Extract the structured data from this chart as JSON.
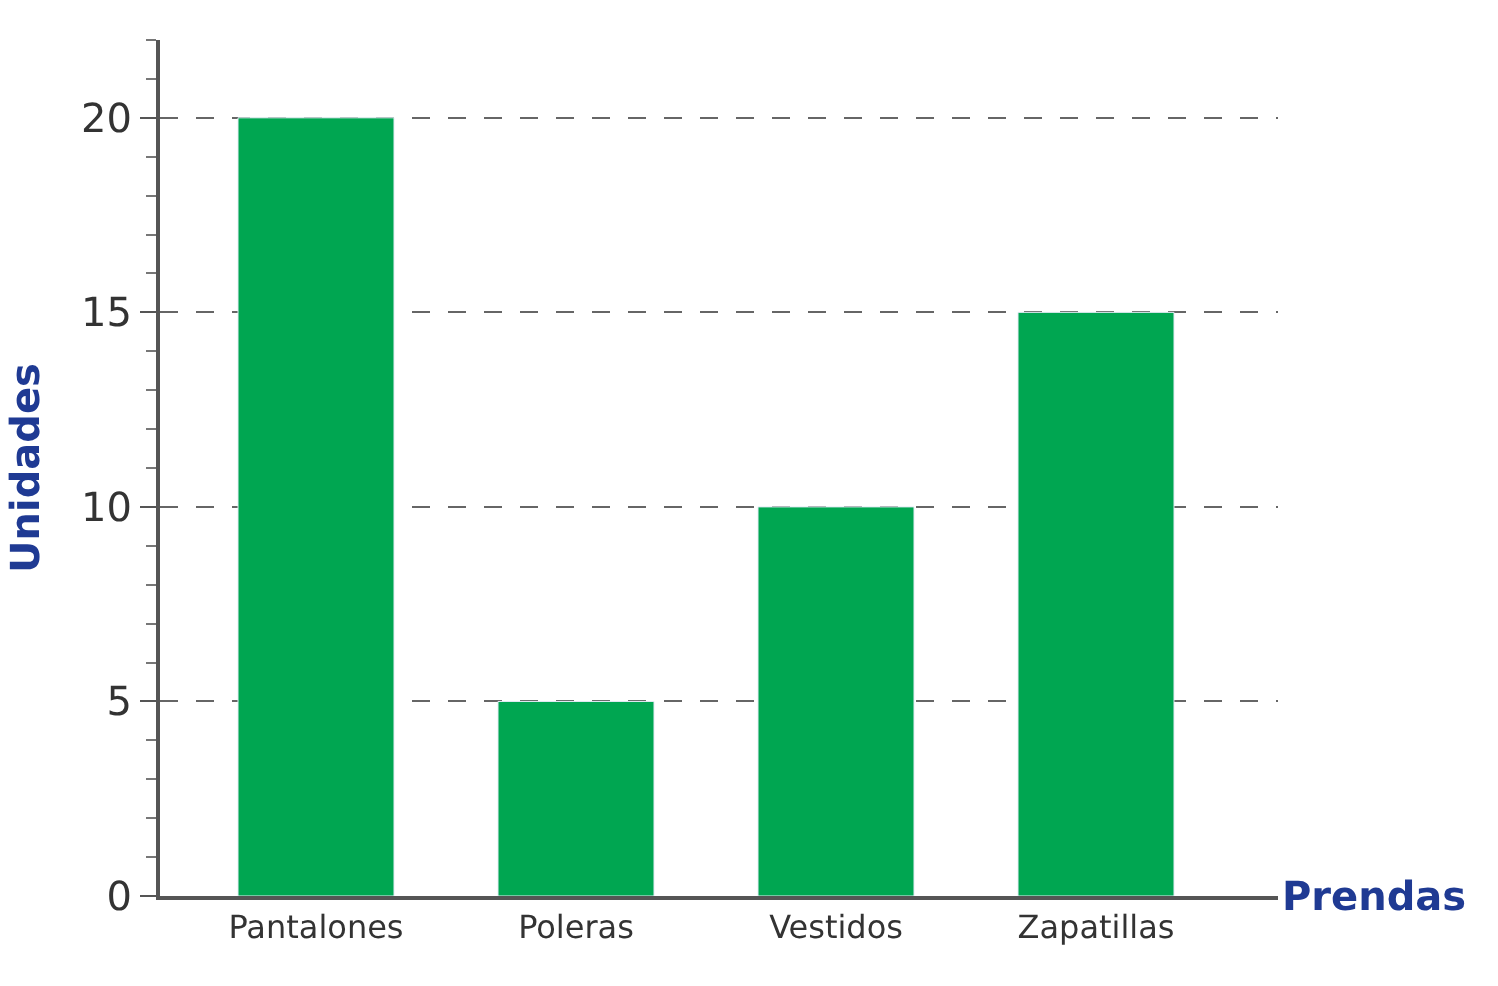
{
  "chart_data": {
    "type": "bar",
    "xlabel": "Prendas",
    "ylabel": "Unidades",
    "categories": [
      "Pantalones",
      "Poleras",
      "Vestidos",
      "Zapatillas"
    ],
    "values": [
      20,
      5,
      10,
      15
    ],
    "color": "#00a651",
    "ylim": [
      0,
      22
    ],
    "yticks": [
      0,
      5,
      10,
      15,
      20
    ],
    "grid": "y",
    "line_style": "dashed",
    "legend": false
  }
}
